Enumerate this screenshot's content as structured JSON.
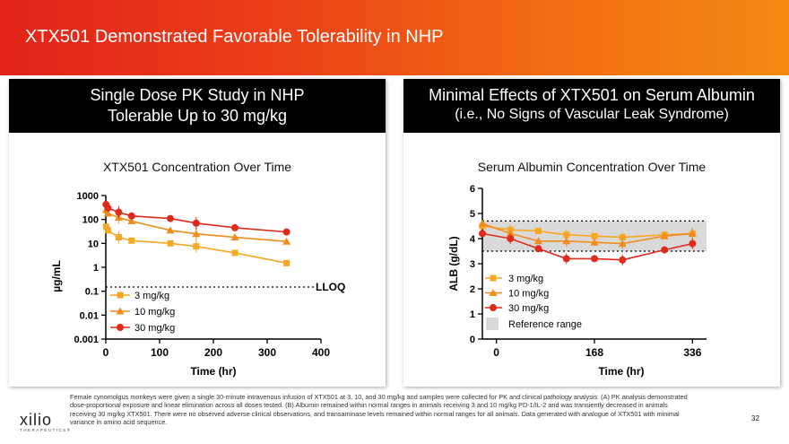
{
  "slide": {
    "title": "XTX501 Demonstrated Favorable Tolerability in NHP",
    "page_number": "32",
    "footnote": "Female cynomolgus monkeys were given a single 30-minute intravenous infusion of XTX501 at 3, 10, and 30 mg/kg and samples were collected for PK and clinical pathology analysis. (A) PK analysis demonstrated dose-proportional exposure and linear elimination across all doses tested. (B) Albumin remained within normal ranges in animals receiving 3 and 10 mg/kg PD-1/IL-2 and was transiently decreased in animals receiving 30 mg/kg XTX501. There were no observed adverse clinical observations, and transaminase levels remained within normal ranges for all animals. Data generated with analogue of XTX501 with minimal variance in amino acid sequence.",
    "logo": {
      "name": "xilio",
      "tagline": "THERAPEUTICS®"
    }
  },
  "left_panel": {
    "header_line1": "Single Dose PK Study in NHP",
    "header_line2": "Tolerable Up to 30 mg/kg"
  },
  "right_panel": {
    "header_line1": "Minimal Effects of XTX501 on Serum Albumin",
    "header_line2": "(i.e., No Signs of Vascular Leak Syndrome)"
  },
  "colors": {
    "banner": "#e8391a",
    "dose3": "#f7a823",
    "dose10": "#f08c1e",
    "dose30": "#e02a1c",
    "ref": "#d9d9d9"
  },
  "chart_data": [
    {
      "type": "line",
      "title": "XTX501 Concentration Over Time",
      "xlabel": "Time (hr)",
      "ylabel": "µg/mL",
      "yscale": "log",
      "xlim": [
        0,
        400
      ],
      "ylim": [
        0.001,
        1000
      ],
      "x_ticks": [
        "0",
        "100",
        "200",
        "300",
        "400"
      ],
      "y_ticks": [
        "0.001",
        "0.01",
        "0.1",
        "1",
        "10",
        "100",
        "1000"
      ],
      "lloq": {
        "label": "LLOQ",
        "value": 0.15
      },
      "series": [
        {
          "name": "3 mg/kg",
          "marker": "square",
          "x": [
            0.5,
            4,
            24,
            48,
            120,
            168,
            240,
            336
          ],
          "y": [
            50,
            35,
            18,
            13,
            10,
            7.5,
            4,
            1.5
          ]
        },
        {
          "name": "10 mg/kg",
          "marker": "triangle",
          "x": [
            0.5,
            4,
            24,
            48,
            120,
            168,
            240,
            336
          ],
          "y": [
            250,
            180,
            120,
            85,
            35,
            25,
            18,
            12
          ]
        },
        {
          "name": "30 mg/kg",
          "marker": "circle",
          "x": [
            0.5,
            4,
            24,
            48,
            120,
            168,
            240,
            336
          ],
          "y": [
            420,
            300,
            200,
            140,
            110,
            70,
            45,
            30
          ]
        }
      ]
    },
    {
      "type": "line",
      "title": "Serum Albumin Concentration Over Time",
      "xlabel": "Time (hr)",
      "ylabel": "ALB (g/dL)",
      "xlim": [
        -24,
        360
      ],
      "ylim": [
        0,
        6
      ],
      "x_ticks": [
        "0",
        "168",
        "336"
      ],
      "y_ticks": [
        "0",
        "1",
        "2",
        "3",
        "4",
        "5",
        "6"
      ],
      "reference_range": {
        "label": "Reference range",
        "low": 3.5,
        "high": 4.7
      },
      "series": [
        {
          "name": "3 mg/kg",
          "marker": "square",
          "x": [
            -24,
            24,
            72,
            120,
            168,
            216,
            288,
            336
          ],
          "y": [
            4.5,
            4.35,
            4.3,
            4.15,
            4.1,
            4.05,
            4.15,
            4.2
          ]
        },
        {
          "name": "10 mg/kg",
          "marker": "triangle",
          "x": [
            -24,
            24,
            72,
            120,
            168,
            216,
            288,
            336
          ],
          "y": [
            4.6,
            4.2,
            3.9,
            3.9,
            3.85,
            3.8,
            4.1,
            4.2
          ]
        },
        {
          "name": "30 mg/kg",
          "marker": "circle",
          "x": [
            -24,
            24,
            72,
            120,
            168,
            216,
            288,
            336
          ],
          "y": [
            4.2,
            4.0,
            3.6,
            3.2,
            3.2,
            3.15,
            3.55,
            3.8
          ]
        }
      ]
    }
  ]
}
